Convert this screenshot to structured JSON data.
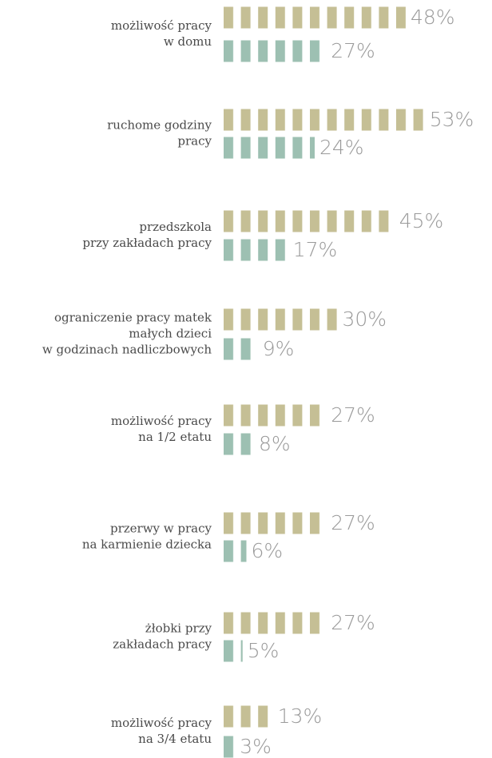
{
  "chart_data": {
    "type": "pictogram-bar",
    "categories": [
      [
        "możliwość pracy",
        "w domu"
      ],
      [
        "ruchome godziny",
        "pracy"
      ],
      [
        "przedszkola",
        "przy zakładach pracy"
      ],
      [
        "ograniczenie pracy matek",
        "małych dzieci",
        "w godzinach nadliczbowych"
      ],
      [
        "możliwość pracy",
        "na 1/2 etatu"
      ],
      [
        "przerwy w pracy",
        "na karmienie dziecka"
      ],
      [
        "żłobki przy",
        "zakładach pracy"
      ],
      [
        "możliwość pracy",
        "na 3/4 etatu"
      ]
    ],
    "series": [
      {
        "color": "#c5bf95",
        "values": [
          48,
          53,
          45,
          30,
          27,
          27,
          27,
          13
        ],
        "value_labels": [
          "48%",
          "53%",
          "45%",
          "30%",
          "27%",
          "27%",
          "27%",
          "13%"
        ]
      },
      {
        "color": "#9dc0b2",
        "values": [
          27,
          24,
          17,
          9,
          8,
          6,
          5,
          3
        ],
        "value_labels": [
          "27%",
          "24%",
          "17%",
          "9%",
          "8%",
          "6%",
          "5%",
          "3%"
        ]
      }
    ]
  }
}
